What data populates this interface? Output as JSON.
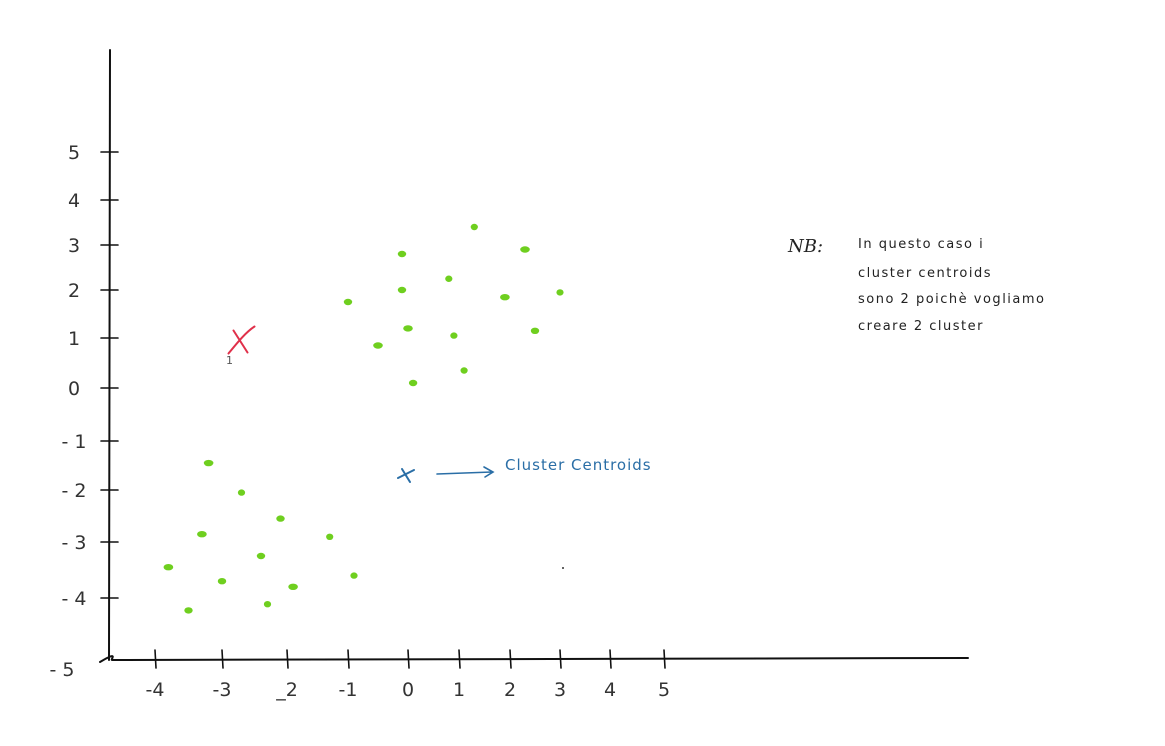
{
  "axes": {
    "x_tick_labels": [
      "-4",
      "-3",
      "_2",
      "-1",
      "0",
      "1",
      "2",
      "3",
      "4",
      "5"
    ],
    "y_tick_labels": [
      "5",
      "4",
      "3",
      "2",
      "1",
      "0",
      "- 1",
      "- 2",
      "- 3",
      "- 4",
      "- 5"
    ]
  },
  "points": [
    {
      "x": 1.3,
      "y": 3.4
    },
    {
      "x": -0.1,
      "y": 2.8
    },
    {
      "x": 2.3,
      "y": 2.9
    },
    {
      "x": 0.8,
      "y": 2.25
    },
    {
      "x": -0.1,
      "y": 2.0
    },
    {
      "x": 1.9,
      "y": 1.85
    },
    {
      "x": 3.0,
      "y": 1.95
    },
    {
      "x": -1.0,
      "y": 1.75
    },
    {
      "x": 0.0,
      "y": 1.2
    },
    {
      "x": 0.9,
      "y": 1.05
    },
    {
      "x": 2.5,
      "y": 1.15
    },
    {
      "x": -0.5,
      "y": 0.85
    },
    {
      "x": 1.1,
      "y": 0.35
    },
    {
      "x": 0.1,
      "y": 0.1
    },
    {
      "x": -3.2,
      "y": -1.45
    },
    {
      "x": -2.7,
      "y": -2.05
    },
    {
      "x": -2.1,
      "y": -2.55
    },
    {
      "x": -3.3,
      "y": -2.85
    },
    {
      "x": -1.3,
      "y": -2.9
    },
    {
      "x": -2.4,
      "y": -3.25
    },
    {
      "x": -3.8,
      "y": -3.45
    },
    {
      "x": -0.9,
      "y": -3.6
    },
    {
      "x": -3.0,
      "y": -3.7
    },
    {
      "x": -1.9,
      "y": -3.8
    },
    {
      "x": -2.3,
      "y": -4.1
    },
    {
      "x": -3.5,
      "y": -4.2
    }
  ],
  "centroid_marker": {
    "x": -2.7,
    "y": 0.95,
    "label": "1",
    "color": "#e0304a"
  },
  "legend": {
    "marker_color": "#2a6ea6",
    "text": "Cluster Centroids"
  },
  "note": {
    "prefix": "NB:",
    "lines": [
      "In questo caso i",
      "cluster centroids",
      "sono 2 poichè vogliamo",
      "creare 2 cluster"
    ]
  },
  "colors": {
    "points": "#6fcf1f",
    "ink": "#222222"
  }
}
